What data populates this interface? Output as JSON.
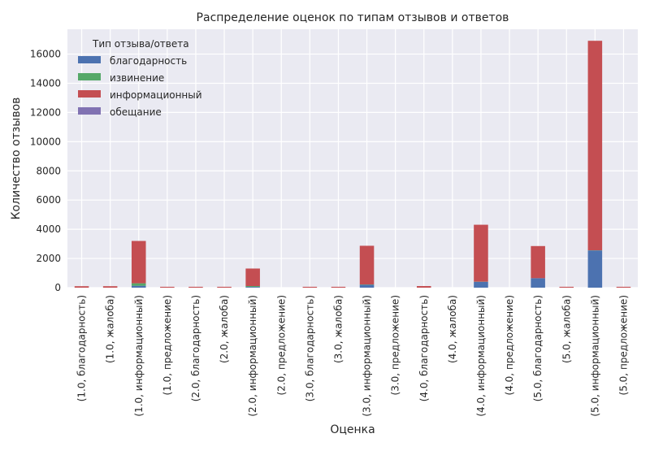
{
  "chart_data": {
    "type": "bar",
    "stacked": true,
    "title": "Распределение оценок по типам отзывов и ответов",
    "xlabel": "Оценка",
    "ylabel": "Количество отзывов",
    "ylim": [
      0,
      17700
    ],
    "yticks": [
      0,
      2000,
      4000,
      6000,
      8000,
      10000,
      12000,
      14000,
      16000
    ],
    "grid": true,
    "legend": {
      "title": "Тип отзыва/ответа",
      "placement": "top-left"
    },
    "categories": [
      "(1.0, благодарность)",
      "(1.0, жалоба)",
      "(1.0, информационный)",
      "(1.0, предложение)",
      "(2.0, благодарность)",
      "(2.0, жалоба)",
      "(2.0, информационный)",
      "(2.0, предложение)",
      "(3.0, благодарность)",
      "(3.0, жалоба)",
      "(3.0, информационный)",
      "(3.0, предложение)",
      "(4.0, благодарность)",
      "(4.0, жалоба)",
      "(4.0, информационный)",
      "(4.0, предложение)",
      "(5.0, благодарность)",
      "(5.0, жалоба)",
      "(5.0, информационный)",
      "(5.0, предложение)"
    ],
    "series": [
      {
        "name": "благодарность",
        "color": "#4c72b0",
        "values": [
          0,
          0,
          130,
          0,
          0,
          0,
          50,
          0,
          0,
          0,
          200,
          0,
          0,
          0,
          400,
          0,
          650,
          0,
          2550,
          0
        ]
      },
      {
        "name": "извинение",
        "color": "#55a868",
        "values": [
          0,
          0,
          170,
          0,
          0,
          0,
          60,
          0,
          0,
          0,
          20,
          0,
          0,
          0,
          10,
          0,
          0,
          0,
          10,
          0
        ]
      },
      {
        "name": "информационный",
        "color": "#c44e52",
        "values": [
          100,
          100,
          2900,
          60,
          60,
          60,
          1200,
          0,
          60,
          60,
          2650,
          0,
          110,
          0,
          3900,
          0,
          2200,
          60,
          14350,
          60
        ]
      },
      {
        "name": "обещание",
        "color": "#8172b2",
        "values": [
          0,
          0,
          0,
          0,
          0,
          0,
          0,
          0,
          0,
          0,
          0,
          0,
          0,
          0,
          0,
          0,
          0,
          0,
          0,
          0
        ]
      }
    ]
  }
}
